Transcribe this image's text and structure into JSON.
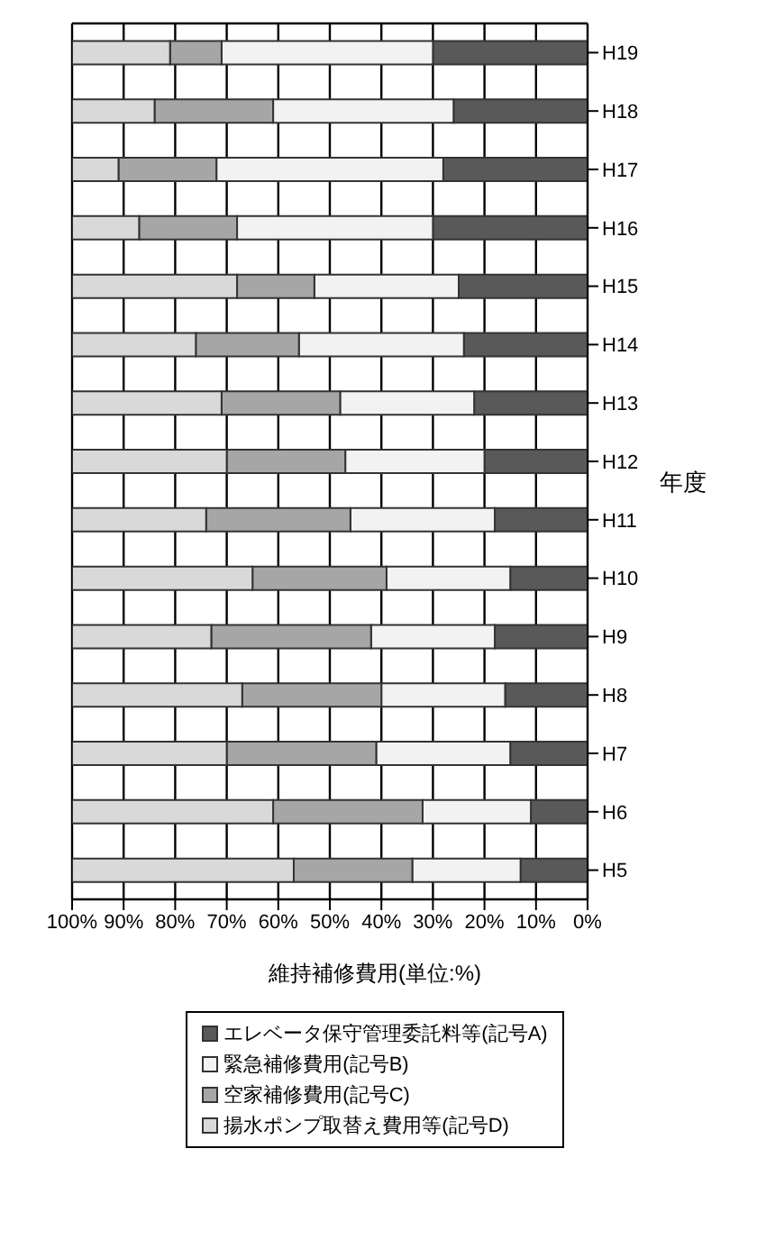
{
  "chart_data": {
    "type": "bar",
    "orientation": "horizontal",
    "stacked": true,
    "ylabel": "年度",
    "xlabel": "維持補修費用(単位:%)",
    "categories": [
      "H19",
      "H18",
      "H17",
      "H16",
      "H15",
      "H14",
      "H13",
      "H12",
      "H11",
      "H10",
      "H9",
      "H8",
      "H7",
      "H6",
      "H5"
    ],
    "series": [
      {
        "name": "エレベータ保守管理委託料等(記号A)",
        "color": "#595959",
        "values": [
          30,
          26,
          28,
          30,
          25,
          24,
          22,
          20,
          18,
          15,
          18,
          16,
          15,
          11,
          13
        ]
      },
      {
        "name": "緊急補修費用(記号B)",
        "color": "#f2f2f2",
        "values": [
          41,
          35,
          44,
          38,
          28,
          32,
          26,
          27,
          28,
          24,
          24,
          24,
          26,
          21,
          21
        ]
      },
      {
        "name": "空家補修費用(記号C)",
        "color": "#a6a6a6",
        "values": [
          10,
          23,
          19,
          19,
          15,
          20,
          23,
          23,
          28,
          26,
          31,
          27,
          29,
          29,
          23
        ]
      },
      {
        "name": "揚水ポンプ取替え費用等(記号D)",
        "color": "#d9d9d9",
        "values": [
          19,
          16,
          9,
          13,
          32,
          24,
          29,
          30,
          26,
          35,
          27,
          33,
          30,
          39,
          43
        ]
      }
    ],
    "xlim": [
      100,
      0
    ],
    "xticks": [
      {
        "value": 100,
        "label": "100%"
      },
      {
        "value": 90,
        "label": "90%"
      },
      {
        "value": 80,
        "label": "80%"
      },
      {
        "value": 70,
        "label": "70%"
      },
      {
        "value": 60,
        "label": "60%"
      },
      {
        "value": 50,
        "label": "50%"
      },
      {
        "value": 40,
        "label": "40%"
      },
      {
        "value": 30,
        "label": "30%"
      },
      {
        "value": 20,
        "label": "20%"
      },
      {
        "value": 10,
        "label": "10%"
      },
      {
        "value": 0,
        "label": "0%"
      }
    ],
    "grid": true,
    "legend": "bottom"
  }
}
